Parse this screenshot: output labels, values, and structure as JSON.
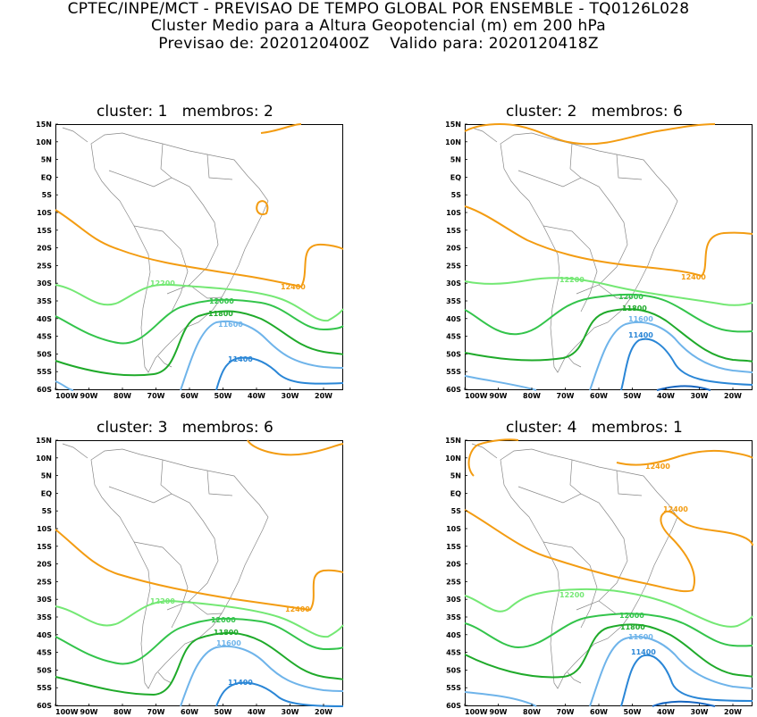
{
  "header": {
    "line1": "CPTEC/INPE/MCT - PREVISAO DE TEMPO GLOBAL POR ENSEMBLE - TQ0126L028",
    "line2": "Cluster Medio para a Altura Geopotencial (m) em 200 hPa",
    "line3": "Previsao de: 2020120400Z    Valido para: 2020120418Z"
  },
  "axes": {
    "lat_labels": [
      "15N",
      "10N",
      "5N",
      "EQ",
      "5S",
      "10S",
      "15S",
      "20S",
      "25S",
      "30S",
      "35S",
      "40S",
      "45S",
      "50S",
      "55S",
      "60S"
    ],
    "lon_labels": [
      "100W",
      "90W",
      "80W",
      "70W",
      "60W",
      "50W",
      "40W",
      "30W",
      "20W"
    ]
  },
  "colors": {
    "c12400": "#f39c12",
    "c12200": "#74e874",
    "c12000": "#33c44b",
    "c11800": "#1faa2a",
    "c11600": "#6fb4ea",
    "c11400": "#2a86d6",
    "coast": "#888888"
  },
  "panels": [
    {
      "title": "cluster: 1   membros: 2",
      "labels": {
        "l12400": "12400",
        "l12200": "12200",
        "l12000": "12000",
        "l11800": "11800",
        "l11600": "11600",
        "l11400": "11400"
      }
    },
    {
      "title": "cluster: 2   membros: 6",
      "labels": {
        "l12400": "12400",
        "l12200": "12200",
        "l12000": "12000",
        "l11800": "11800",
        "l11600": "11600",
        "l11400": "11400"
      }
    },
    {
      "title": "cluster: 3   membros: 6",
      "labels": {
        "l12400": "12400",
        "l12200": "12200",
        "l12000": "12000",
        "l11800": "11800",
        "l11600": "11600",
        "l11400": "11400"
      }
    },
    {
      "title": "cluster: 4   membros: 1",
      "labels": {
        "l12400a": "12400",
        "l12400b": "12400",
        "l12200": "12200",
        "l12000": "12000",
        "l11800": "11800",
        "l11600": "11600",
        "l11400": "11400"
      }
    }
  ]
}
